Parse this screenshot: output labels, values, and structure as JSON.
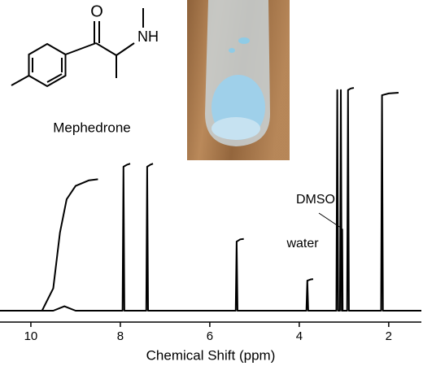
{
  "chart_data": {
    "type": "line",
    "xlabel": "Chemical Shift (ppm)",
    "structure_label": "Mephedrone",
    "atom_labels": [
      "O",
      "NH"
    ],
    "annotations": [
      "DMSO",
      "water"
    ],
    "xlim": [
      10.69,
      1.27
    ],
    "ylim": [
      0,
      100
    ],
    "xticks": [
      10,
      8,
      6,
      4,
      2
    ],
    "series": [
      {
        "color": "#000000",
        "x": [
          10.69,
          9.5,
          9.25,
          9.0,
          7.95,
          7.93,
          7.91,
          7.42,
          7.4,
          7.38,
          5.42,
          5.4,
          5.38,
          3.84,
          3.82,
          3.8,
          3.17,
          3.15,
          3.13,
          3.09,
          3.07,
          3.05,
          3.04,
          3.03,
          2.93,
          2.91,
          2.89,
          2.17,
          2.15,
          2.13,
          1.27
        ],
        "values": [
          0,
          0,
          2,
          0,
          0,
          64.6,
          0,
          0,
          64.6,
          0,
          0,
          31,
          0,
          0,
          13.5,
          0,
          0,
          99,
          0,
          0,
          99,
          0,
          36.5,
          0,
          0,
          99,
          0,
          0,
          96.7,
          0,
          0
        ]
      },
      {
        "color": "#000000",
        "x": [
          9.75,
          9.5,
          9.35,
          9.2,
          9.0,
          8.7,
          8.5,
          null,
          7.93,
          7.85,
          7.78,
          null,
          7.4,
          7.33,
          7.27,
          null,
          5.4,
          5.32,
          5.24,
          null,
          3.82,
          3.75,
          3.69,
          null,
          2.91,
          2.85,
          2.78,
          null,
          2.15,
          2.0,
          1.78
        ],
        "values": [
          0,
          10,
          35,
          50,
          56,
          58.5,
          59,
          null,
          64.6,
          65.5,
          66,
          null,
          64.6,
          65.5,
          66,
          null,
          31,
          32,
          32.2,
          null,
          13.5,
          14,
          14.2,
          null,
          99,
          99.7,
          100,
          null,
          96.7,
          97.5,
          97.8
        ]
      }
    ]
  }
}
